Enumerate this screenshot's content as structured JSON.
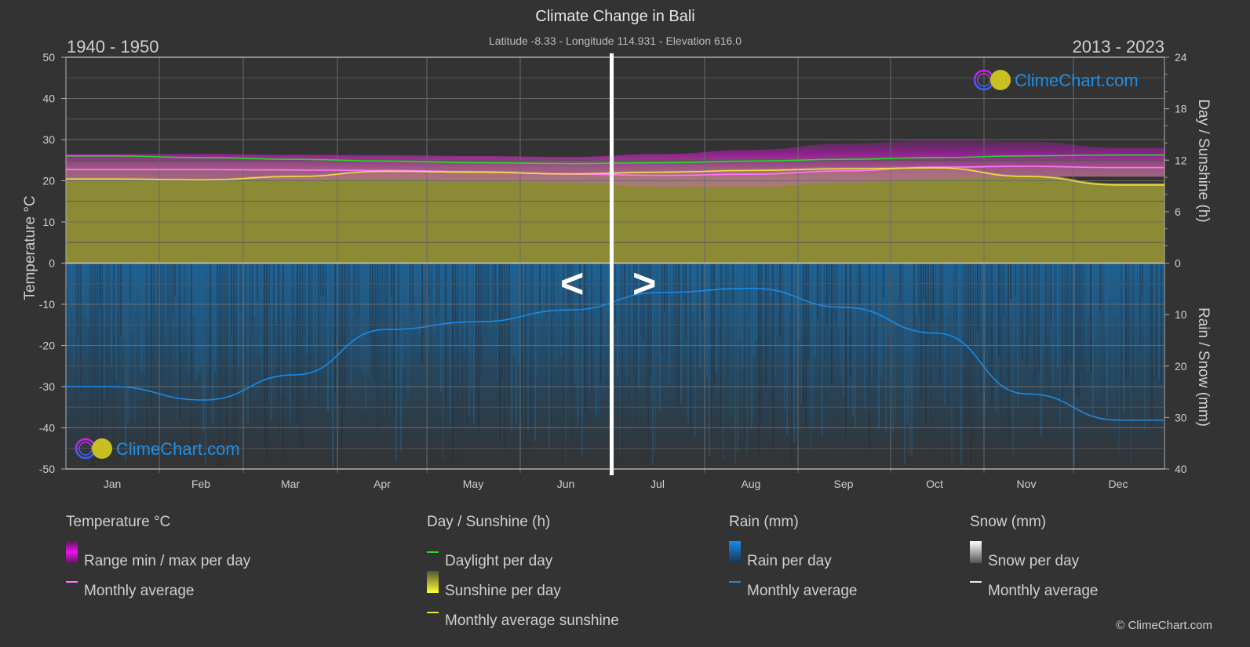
{
  "header": {
    "title": "Climate Change in Bali",
    "subtitle": "Latitude -8.33 - Longitude 114.931 - Elevation 616.0",
    "period_left": "1940 - 1950",
    "period_right": "2013 - 2023"
  },
  "watermark": {
    "text": "ClimeChart.com"
  },
  "navigation": {
    "prev_label": "<",
    "next_label": ">"
  },
  "axes": {
    "left_title": "Temperature °C",
    "left_ticks": [
      "50",
      "40",
      "30",
      "20",
      "10",
      "0",
      "-10",
      "-20",
      "-30",
      "-40",
      "-50"
    ],
    "right_top_title": "Day / Sunshine (h)",
    "right_top_ticks": [
      "24",
      "18",
      "12",
      "6",
      "0"
    ],
    "right_bottom_title": "Rain / Snow (mm)",
    "right_bottom_ticks": [
      "10",
      "20",
      "30",
      "40"
    ],
    "months": [
      "Jan",
      "Feb",
      "Mar",
      "Apr",
      "May",
      "Jun",
      "Jul",
      "Aug",
      "Sep",
      "Oct",
      "Nov",
      "Dec"
    ]
  },
  "colors": {
    "background": "#333333",
    "grid": "#5a5a5a",
    "temp_range": "#b51cb5",
    "temp_avg": "#ff77ff",
    "daylight": "#22dd22",
    "sunshine_fill": "#8c8a35",
    "sunshine_avg": "#f0e040",
    "rain_fill": "#1f5a85",
    "rain_avg": "#1a8ae6",
    "divider": "#ffffff",
    "brand_blue": "#1f8fe6"
  },
  "legend": {
    "temperature": {
      "title": "Temperature °C",
      "items": [
        "Range min / max per day",
        "Monthly average"
      ]
    },
    "sunshine": {
      "title": "Day / Sunshine (h)",
      "items": [
        "Daylight per day",
        "Sunshine per day",
        "Monthly average sunshine"
      ]
    },
    "rain": {
      "title": "Rain (mm)",
      "items": [
        "Rain per day",
        "Monthly average"
      ]
    },
    "snow": {
      "title": "Snow (mm)",
      "items": [
        "Snow per day",
        "Monthly average"
      ]
    }
  },
  "footer": {
    "copyright": "© ClimeChart.com"
  },
  "chart_data": {
    "type": "line",
    "title": "Climate Change in Bali",
    "subtitle": "Latitude -8.33 - Longitude 114.931 - Elevation 616.0",
    "x": [
      "Jan",
      "Feb",
      "Mar",
      "Apr",
      "May",
      "Jun",
      "Jul",
      "Aug",
      "Sep",
      "Oct",
      "Nov",
      "Dec"
    ],
    "xlabel": "",
    "ylabel_left": "Temperature °C",
    "ylim_left": [
      -50,
      50
    ],
    "ylabel_right_top": "Day / Sunshine (h)",
    "ylim_right_top": [
      0,
      24
    ],
    "ylabel_right_bottom": "Rain / Snow (mm)",
    "ylim_right_bottom": [
      0,
      40
    ],
    "grid": true,
    "legend_position": "bottom",
    "split_note": "Left half 1940 - 1950, right half 2013 - 2023 (divider at mid-June)",
    "series": [
      {
        "name": "Temperature monthly average (°C)",
        "axis": "left",
        "values": [
          22.7,
          22.7,
          22.6,
          22.5,
          22.2,
          21.6,
          21.3,
          21.6,
          22.4,
          23.3,
          23.5,
          23.2
        ]
      },
      {
        "name": "Temperature range max (°C, approx)",
        "axis": "left",
        "values": [
          26.5,
          26.5,
          26.3,
          26.2,
          26.0,
          25.8,
          26.5,
          27.5,
          29.0,
          30.0,
          29.5,
          28.0
        ]
      },
      {
        "name": "Temperature range min (°C, approx)",
        "axis": "left",
        "values": [
          20.5,
          20.5,
          20.3,
          20.5,
          20.0,
          19.5,
          18.5,
          18.5,
          19.5,
          20.5,
          21.0,
          21.0
        ]
      },
      {
        "name": "Daylight per day (h)",
        "axis": "right_top",
        "values": [
          12.5,
          12.3,
          12.1,
          11.9,
          11.7,
          11.6,
          11.7,
          11.9,
          12.1,
          12.3,
          12.5,
          12.6
        ]
      },
      {
        "name": "Monthly average sunshine (h)",
        "axis": "right_top",
        "values": [
          9.8,
          9.7,
          10.1,
          10.7,
          10.6,
          10.4,
          10.6,
          10.8,
          11.0,
          11.1,
          10.1,
          9.1
        ]
      },
      {
        "name": "Rain monthly average (mm)",
        "axis": "right_bottom",
        "values": [
          24.0,
          26.6,
          21.7,
          12.9,
          11.4,
          9.1,
          5.7,
          4.9,
          8.6,
          13.6,
          25.4,
          30.5
        ]
      },
      {
        "name": "Snow monthly average (mm)",
        "axis": "right_bottom",
        "values": [
          0,
          0,
          0,
          0,
          0,
          0,
          0,
          0,
          0,
          0,
          0,
          0
        ]
      }
    ]
  }
}
